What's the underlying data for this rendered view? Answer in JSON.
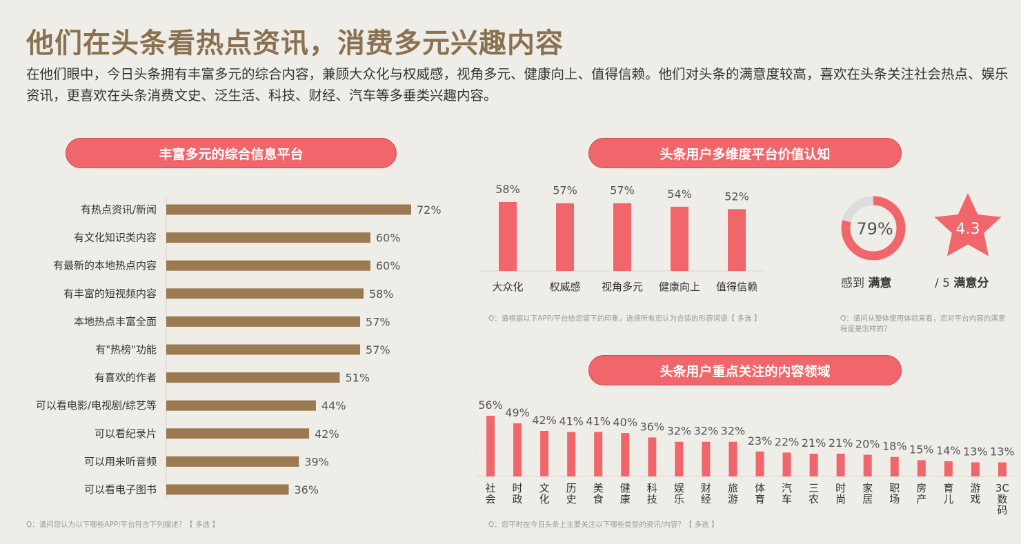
{
  "header": {
    "title": "他们在头条看热点资讯，消费多元兴趣内容",
    "subtitle": "在他们眼中，今日头条拥有丰富多元的综合内容，兼顾大众化与权威感，视角多元、健康向上、值得信赖。他们对头条的满意度较高，喜欢在头条关注社会热点、娱乐资讯，更喜欢在头条消费文史、泛生活、科技、财经、汽车等多垂类兴趣内容。"
  },
  "colors": {
    "brown_bar": "#9b7a52",
    "red_bar": "#f1666a",
    "title": "#8b7150"
  },
  "panels": {
    "platform": {
      "title": "丰富多元的综合信息平台",
      "question": "Q：请问您认为以下哪些APP/平台符合下列描述？【 多选 】"
    },
    "value": {
      "title": "头条用户多维度平台价值认知",
      "question": "Q：请根据以下APP/平台给您留下的印象，选择所有您认为合适的形容词语【 多选 】"
    },
    "satisfaction": {
      "question_line1": "Q：请问从整体使用体验来看，您对平台内容的满意",
      "question_line2": "程度是怎样的？",
      "donut_value": "79%",
      "donut_fraction": 0.79,
      "donut_label_prefix": "感到 ",
      "donut_label_bold": "满意",
      "star_value": "4.3",
      "star_label_prefix": "/ 5 ",
      "star_label_bold": "满意分"
    },
    "content": {
      "title": "头条用户重点关注的内容领域",
      "question": "Q：您平时在今日头条上主要关注以下哪些类型的资讯/内容？【 多选 】"
    }
  },
  "chart_data": [
    {
      "type": "bar",
      "orientation": "horizontal",
      "title": "丰富多元的综合信息平台",
      "categories": [
        "有热点资讯/新闻",
        "有文化知识类内容",
        "有最新的本地热点内容",
        "有丰富的短视频内容",
        "本地热点丰富全面",
        "有\"热榜\"功能",
        "有喜欢的作者",
        "可以看电影/电视剧/综艺等",
        "可以看纪录片",
        "可以用来听音频",
        "可以看电子图书"
      ],
      "values": [
        72,
        60,
        60,
        58,
        57,
        57,
        51,
        44,
        42,
        39,
        36
      ],
      "labels": [
        "72%",
        "60%",
        "60%",
        "58%",
        "57%",
        "57%",
        "51%",
        "44%",
        "42%",
        "39%",
        "36%"
      ]
    },
    {
      "type": "bar",
      "title": "头条用户多维度平台价值认知",
      "categories": [
        "大众化",
        "权威感",
        "视角多元",
        "健康向上",
        "值得信赖"
      ],
      "values": [
        58,
        57,
        57,
        54,
        52
      ],
      "labels": [
        "58%",
        "57%",
        "57%",
        "54%",
        "52%"
      ]
    },
    {
      "type": "bar",
      "title": "头条用户重点关注的内容领域",
      "categories": [
        "社会",
        "时政",
        "文化",
        "历史",
        "美食",
        "健康",
        "科技",
        "娱乐",
        "财经",
        "旅游",
        "体育",
        "汽车",
        "三农",
        "时尚",
        "家居",
        "职场",
        "房产",
        "育儿",
        "游戏",
        "3C数码"
      ],
      "values": [
        56,
        49,
        42,
        41,
        41,
        40,
        36,
        32,
        32,
        32,
        23,
        22,
        21,
        21,
        20,
        18,
        15,
        14,
        13,
        13
      ],
      "labels": [
        "56%",
        "49%",
        "42%",
        "41%",
        "41%",
        "40%",
        "36%",
        "32%",
        "32%",
        "32%",
        "23%",
        "22%",
        "21%",
        "21%",
        "20%",
        "18%",
        "15%",
        "14%",
        "13%",
        "13%"
      ]
    }
  ]
}
